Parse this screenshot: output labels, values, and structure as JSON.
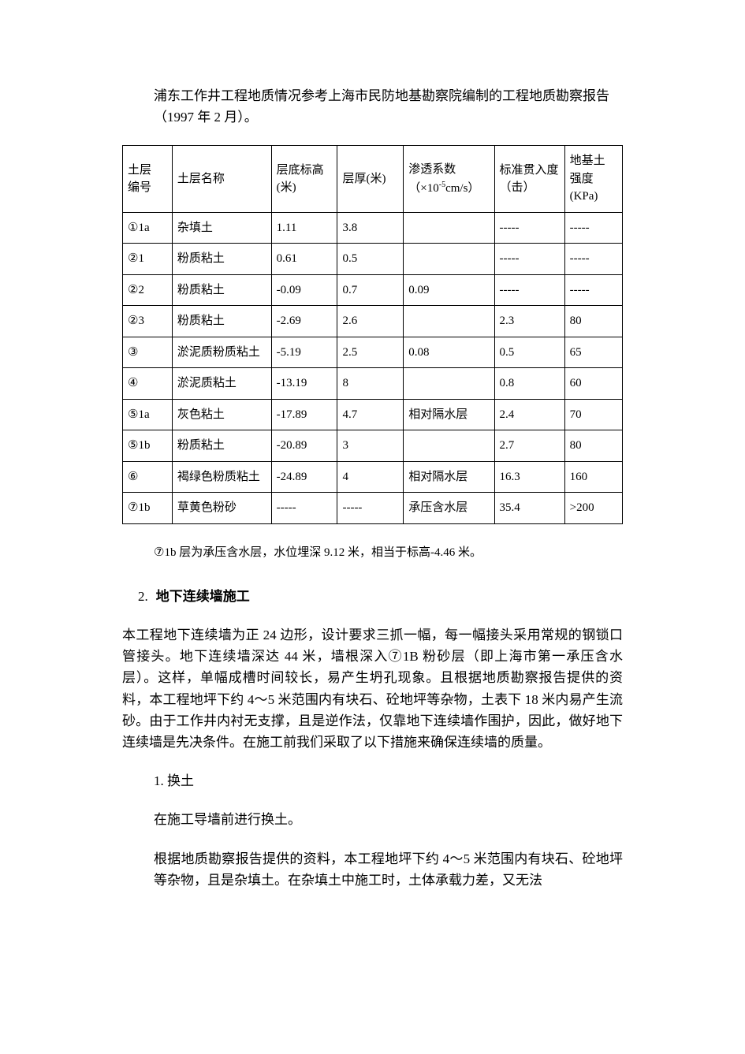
{
  "intro": "浦东工作井工程地质情况参考上海市民防地基勘察院编制的工程地质勘察报告（1997 年 2 月）。",
  "table": {
    "headers": {
      "c1": "土层\n编号",
      "c2": "土层名称",
      "c3": "层底标高\n(米)",
      "c4": "层厚(米)",
      "c5_line1": "渗透系数",
      "c5_line2_pre": "（×10",
      "c5_exp": "-5",
      "c5_line2_post": "cm/s）",
      "c6": "标准贯入度\n（击）",
      "c7": "地基土\n强度\n(KPa)"
    },
    "rows": [
      {
        "c1": "①1a",
        "c2": "杂填土",
        "c3": "1.11",
        "c4": "3.8",
        "c5": "",
        "c6": "-----",
        "c7": "-----"
      },
      {
        "c1": "②1",
        "c2": "粉质粘土",
        "c3": "0.61",
        "c4": "0.5",
        "c5": "",
        "c6": "-----",
        "c7": "-----"
      },
      {
        "c1": "②2",
        "c2": "粉质粘土",
        "c3": "-0.09",
        "c4": "0.7",
        "c5": "0.09",
        "c6": "-----",
        "c7": "-----"
      },
      {
        "c1": "②3",
        "c2": "粉质粘土",
        "c3": "-2.69",
        "c4": "2.6",
        "c5": "",
        "c6": "2.3",
        "c7": "80"
      },
      {
        "c1": "③",
        "c2": "淤泥质粉质粘土",
        "c3": "-5.19",
        "c4": "2.5",
        "c5": "0.08",
        "c6": "0.5",
        "c7": "65"
      },
      {
        "c1": "④",
        "c2": "淤泥质粘土",
        "c3": "-13.19",
        "c4": "8",
        "c5": "",
        "c6": "0.8",
        "c7": "60"
      },
      {
        "c1": "⑤1a",
        "c2": "灰色粘土",
        "c3": "-17.89",
        "c4": "4.7",
        "c5": "相对隔水层",
        "c6": "2.4",
        "c7": "70"
      },
      {
        "c1": "⑤1b",
        "c2": "粉质粘土",
        "c3": "-20.89",
        "c4": "3",
        "c5": "",
        "c6": "2.7",
        "c7": "80"
      },
      {
        "c1": "⑥",
        "c2": "褐绿色粉质粘土",
        "c3": "-24.89",
        "c4": "4",
        "c5": "相对隔水层",
        "c6": "16.3",
        "c7": "160"
      },
      {
        "c1": "⑦1b",
        "c2": "草黄色粉砂",
        "c3": "-----",
        "c4": "-----",
        "c5": "承压含水层",
        "c6": "35.4",
        "c7": ">200"
      }
    ]
  },
  "note": "⑦1b 层为承压含水层，水位埋深 9.12 米，相当于标高-4.46 米。",
  "section": {
    "num": "2.",
    "title": "地下连续墙施工",
    "para": "本工程地下连续墙为正 24 边形，设计要求三抓一幅，每一幅接头采用常规的钢锁口管接头。地下连续墙深达 44 米，墙根深入⑦1B 粉砂层（即上海市第一承压含水层）。这样，单幅成槽时间较长，易产生坍孔现象。且根据地质勘察报告提供的资料，本工程地坪下约 4～5 米范围内有块石、砼地坪等杂物，土表下 18 米内易产生流砂。由于工作井内衬无支撑，且是逆作法，仅靠地下连续墙作围护，因此，做好地下连续墙是先决条件。在施工前我们采取了以下措施来确保连续墙的质量。"
  },
  "sub": {
    "num": "1.",
    "title": "换土",
    "p1": "在施工导墙前进行换土。",
    "p2": "根据地质勘察报告提供的资料，本工程地坪下约 4～5 米范围内有块石、砼地坪等杂物，且是杂填土。在杂填土中施工时，土体承载力差，又无法"
  }
}
